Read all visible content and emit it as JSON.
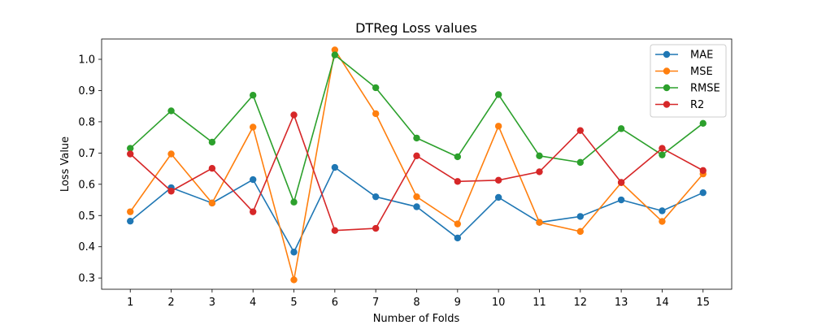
{
  "chart_data": {
    "type": "line",
    "title": "DTReg Loss values",
    "xlabel": "Number of Folds",
    "ylabel": "Loss Value",
    "x": [
      1,
      2,
      3,
      4,
      5,
      6,
      7,
      8,
      9,
      10,
      11,
      12,
      13,
      14,
      15
    ],
    "xlim": [
      0.3,
      15.7
    ],
    "ylim": [
      0.264,
      1.065
    ],
    "yticks": [
      0.3,
      0.4,
      0.5,
      0.6,
      0.7,
      0.8,
      0.9,
      1.0
    ],
    "ytick_labels": [
      "0.3",
      "0.4",
      "0.5",
      "0.6",
      "0.7",
      "0.8",
      "0.9",
      "1.0"
    ],
    "grid": false,
    "legend_position": "upper right",
    "series": [
      {
        "name": "MAE",
        "color": "#1f77b4",
        "values": [
          0.482,
          0.589,
          0.54,
          0.615,
          0.383,
          0.654,
          0.56,
          0.528,
          0.428,
          0.558,
          0.478,
          0.497,
          0.55,
          0.515,
          0.573
        ]
      },
      {
        "name": "MSE",
        "color": "#ff7f0e",
        "values": [
          0.512,
          0.697,
          0.54,
          0.783,
          0.294,
          1.03,
          0.826,
          0.56,
          0.473,
          0.786,
          0.478,
          0.449,
          0.605,
          0.481,
          0.633
        ]
      },
      {
        "name": "RMSE",
        "color": "#2ca02c",
        "values": [
          0.715,
          0.835,
          0.735,
          0.885,
          0.543,
          1.014,
          0.909,
          0.748,
          0.688,
          0.887,
          0.691,
          0.67,
          0.778,
          0.694,
          0.795
        ]
      },
      {
        "name": "R2",
        "color": "#d62728",
        "values": [
          0.697,
          0.578,
          0.651,
          0.512,
          0.822,
          0.452,
          0.459,
          0.691,
          0.609,
          0.613,
          0.64,
          0.772,
          0.606,
          0.715,
          0.644
        ]
      }
    ]
  }
}
